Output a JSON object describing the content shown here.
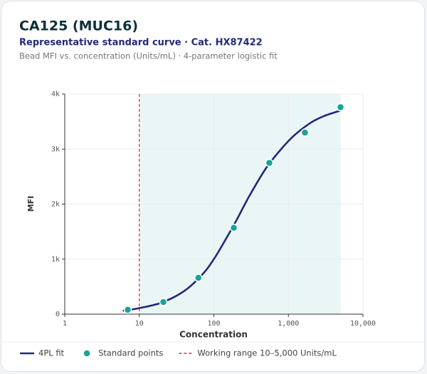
{
  "chart_data": {
    "type": "line",
    "title": "CA125 (MUC16)",
    "subtitle": "Representative standard curve · Cat. HX87422",
    "caption": "Bead MFI vs. concentration (Units/mL) · 4-parameter logistic fit",
    "x_label": "Concentration",
    "y_label": "MFI",
    "xscale": "log",
    "xlim": [
      1,
      10000
    ],
    "xticks": [
      1,
      10,
      100,
      {
        "value": 1000,
        "label": "1,000"
      },
      {
        "value": 10000,
        "label": "10,000"
      }
    ],
    "ylim": [
      0,
      4000
    ],
    "yticks": [
      0,
      {
        "value": 1000,
        "label": "1k"
      },
      {
        "value": 2000,
        "label": "2k"
      },
      {
        "value": 3000,
        "label": "3k"
      },
      {
        "value": 4000,
        "label": "4k"
      }
    ],
    "grid": true,
    "legend": "bottom",
    "series": [
      {
        "name": "4PL fit",
        "kind": "line",
        "color": "#23297a",
        "x": [
          6,
          10,
          20,
          40,
          70,
          100,
          150,
          200,
          300,
          500,
          800,
          1200,
          2000,
          3000,
          5000
        ],
        "values": [
          60,
          110,
          210,
          420,
          720,
          1000,
          1400,
          1700,
          2150,
          2650,
          3000,
          3250,
          3480,
          3600,
          3700
        ]
      },
      {
        "name": "Standard points",
        "kind": "scatter",
        "color": "#17a398",
        "x": [
          7,
          21,
          62,
          185,
          555,
          1666,
          5000
        ],
        "values": [
          80,
          220,
          660,
          1570,
          2750,
          3300,
          3760
        ]
      }
    ],
    "working_range": {
      "label": "Working range 10–5,000 Units/mL",
      "x": [
        10,
        5000
      ],
      "color": "#d0344a",
      "fill": "#eaf6f6"
    }
  }
}
